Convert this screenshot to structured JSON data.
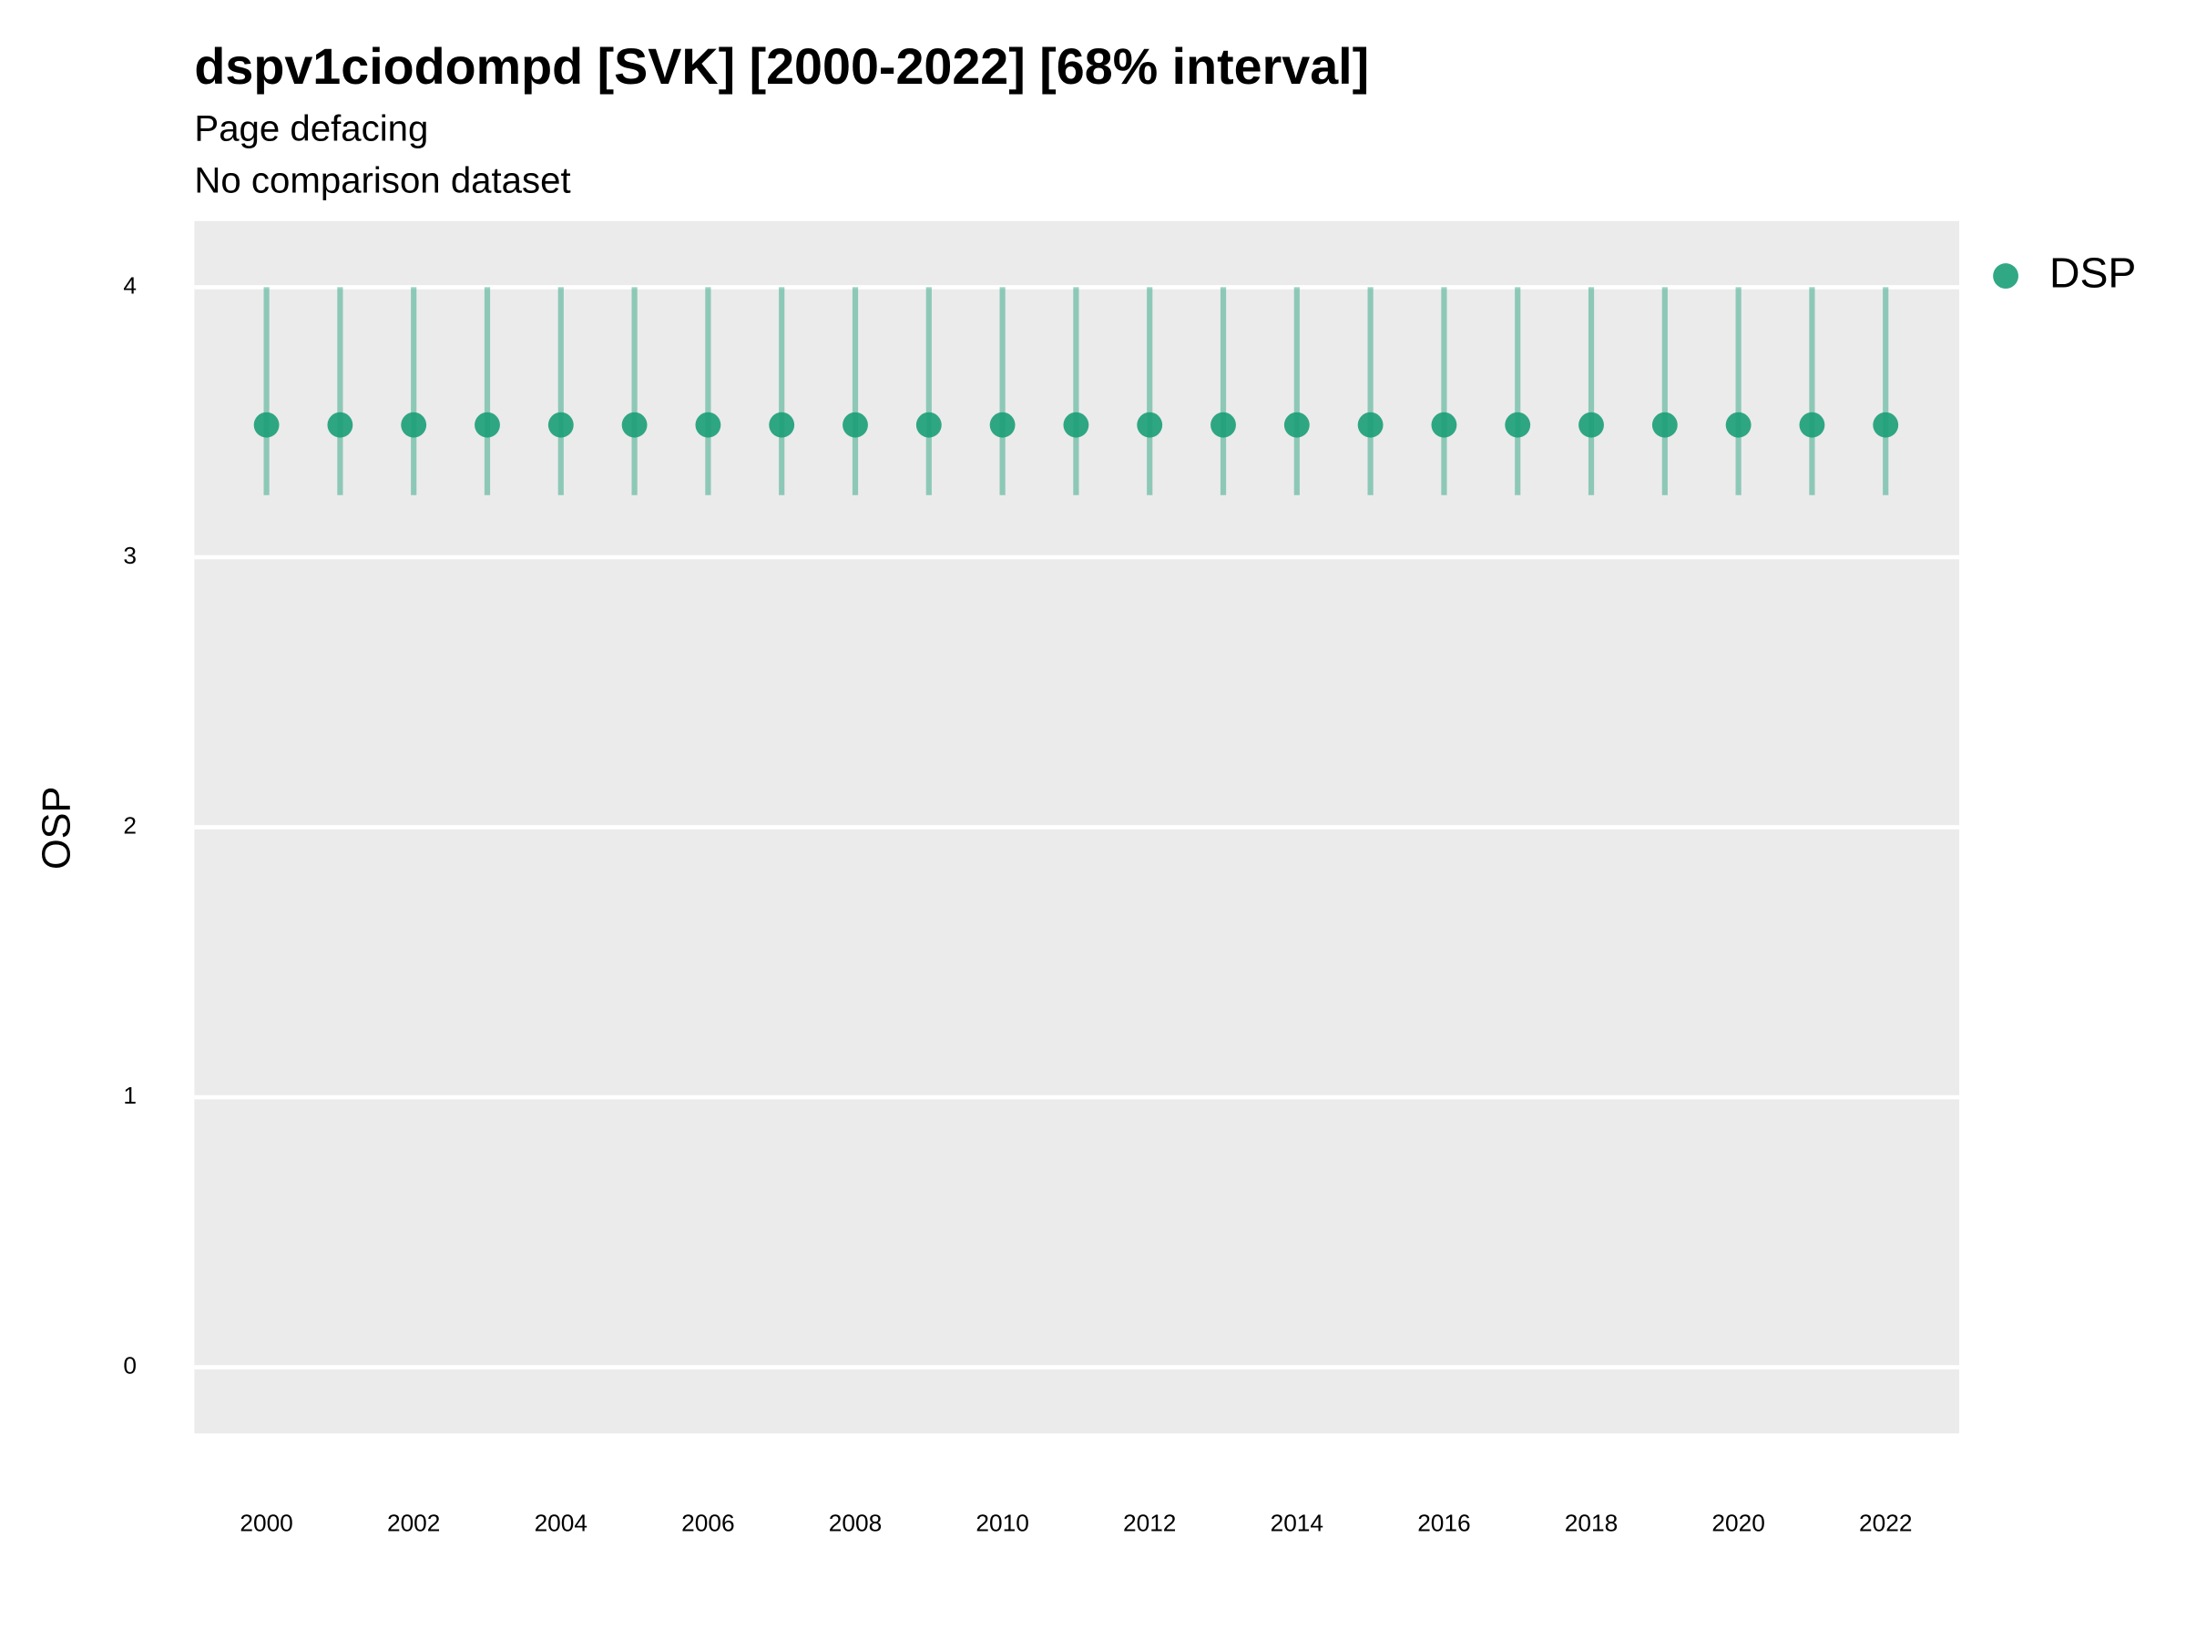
{
  "chart_data": {
    "type": "pointrange",
    "title": "dspv1ciodompd [SVK] [2000-2022] [68% interval]",
    "subtitle": "Page defacing",
    "caption_top": "No comparison dataset",
    "ylabel": "OSP",
    "x": [
      2000,
      2001,
      2002,
      2003,
      2004,
      2005,
      2006,
      2007,
      2008,
      2009,
      2010,
      2011,
      2012,
      2013,
      2014,
      2015,
      2016,
      2017,
      2018,
      2019,
      2020,
      2021,
      2022
    ],
    "series": [
      {
        "name": "DSP",
        "color": "#1b9e77",
        "values": [
          3.49,
          3.49,
          3.49,
          3.49,
          3.49,
          3.49,
          3.49,
          3.49,
          3.49,
          3.49,
          3.49,
          3.49,
          3.49,
          3.49,
          3.49,
          3.49,
          3.49,
          3.49,
          3.49,
          3.49,
          3.49,
          3.49,
          3.49
        ],
        "lower": [
          3.23,
          3.23,
          3.23,
          3.23,
          3.23,
          3.23,
          3.23,
          3.23,
          3.23,
          3.23,
          3.23,
          3.23,
          3.23,
          3.23,
          3.23,
          3.23,
          3.23,
          3.23,
          3.23,
          3.23,
          3.23,
          3.23,
          3.23
        ],
        "upper": [
          4,
          4,
          4,
          4,
          4,
          4,
          4,
          4,
          4,
          4,
          4,
          4,
          4,
          4,
          4,
          4,
          4,
          4,
          4,
          4,
          4,
          4,
          4
        ]
      }
    ],
    "xlim": [
      1999.02,
      2023.0
    ],
    "xticks": [
      2000,
      2002,
      2004,
      2006,
      2008,
      2010,
      2012,
      2014,
      2016,
      2018,
      2020,
      2022
    ],
    "ylim": [
      -0.245,
      4.245
    ],
    "yticks": [
      0,
      1,
      2,
      3,
      4
    ],
    "grid": true,
    "legend": "right"
  }
}
